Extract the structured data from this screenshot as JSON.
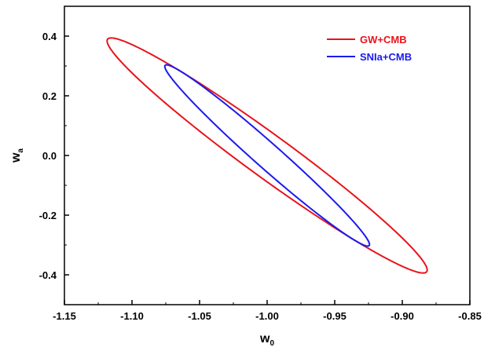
{
  "chart_data": {
    "type": "contour",
    "title": "",
    "xlabel": "w",
    "xlabel_subscript": "0",
    "ylabel": "w",
    "ylabel_subscript": "a",
    "xlim": [
      -1.15,
      -0.85
    ],
    "ylim": [
      -0.5,
      0.5
    ],
    "xticks": [
      "-1.15",
      "-1.10",
      "-1.05",
      "-1.00",
      "-0.95",
      "-0.90",
      "-0.85"
    ],
    "yticks": [
      "-0.4",
      "-0.2",
      "0.0",
      "0.2",
      "0.4"
    ],
    "ytick_values": [
      -0.4,
      -0.2,
      0.0,
      0.2,
      0.4
    ],
    "xtick_values": [
      -1.15,
      -1.1,
      -1.05,
      -1.0,
      -0.95,
      -0.9,
      -0.85
    ],
    "grid": false,
    "legend_position": "top-right",
    "series": [
      {
        "name": "GW+CMB",
        "color": "#e8141b",
        "ellipse": {
          "center": [
            -1.0,
            0.0
          ],
          "u": [
            0.118,
            -0.39
          ],
          "v": [
            0.0101,
            0.0555
          ]
        }
      },
      {
        "name": "SNIa+CMB",
        "color": "#1a1aef",
        "ellipse": {
          "center": [
            -1.0,
            0.0
          ],
          "u": [
            0.0755,
            -0.302
          ],
          "v": [
            0.006,
            0.0322
          ]
        }
      }
    ]
  }
}
